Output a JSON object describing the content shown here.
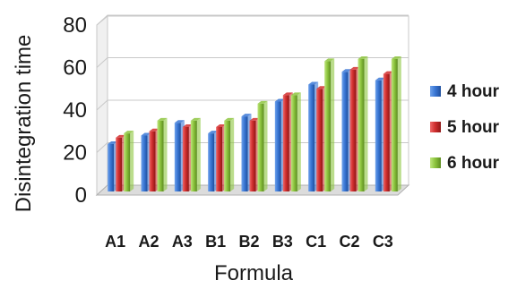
{
  "chart_data": {
    "type": "bar",
    "title": "",
    "xlabel": "Formula",
    "ylabel": "Disintegration time",
    "ylim": [
      0,
      80
    ],
    "yticks": [
      0,
      20,
      40,
      60,
      80
    ],
    "grid": true,
    "legend_position": "right",
    "style": "3d-clustered-columns",
    "categories": [
      "A1",
      "A2",
      "A3",
      "B1",
      "B2",
      "B3",
      "C1",
      "C2",
      "C3"
    ],
    "series": [
      {
        "name": "4 hour",
        "color": "#3b78d6",
        "values": [
          24,
          28,
          34,
          29,
          37,
          44,
          52,
          58,
          54
        ]
      },
      {
        "name": "5 hour",
        "color": "#d22f2f",
        "values": [
          27,
          30,
          32,
          32,
          35,
          47,
          50,
          59,
          57
        ]
      },
      {
        "name": "6 hour",
        "color": "#8ec63f",
        "values": [
          29,
          35,
          35,
          35,
          43,
          47,
          63,
          64,
          64
        ]
      }
    ]
  }
}
